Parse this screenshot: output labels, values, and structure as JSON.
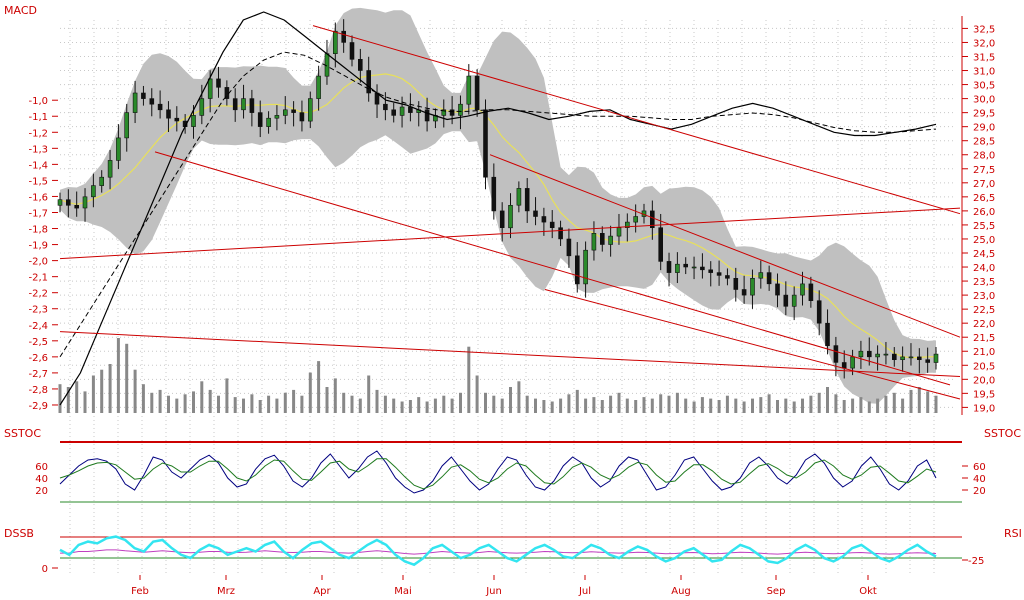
{
  "panels": {
    "main": {
      "left_label": "MACD"
    },
    "stoch": {
      "left_label": "SSTOC",
      "right_label": "SSTOC"
    },
    "dssb": {
      "left_label": "DSSB",
      "right_label": "RSI"
    }
  },
  "colors": {
    "axis_text": "#cc0000",
    "candle_up": "#2a8a2a",
    "candle_down": "#111111",
    "bollinger_band": "#c0c0c0",
    "moving_average": "#e8e05a",
    "trendline": "#cc0000",
    "volume": "#888888",
    "stoch_fast": "#000080",
    "stoch_slow": "#1f7a1f",
    "dssb_line": "#33e5f0",
    "rsi_line": "#c040c0"
  },
  "chart_data": [
    {
      "type": "candlestick",
      "title": "",
      "x_tick_labels": [
        "Feb",
        "Mrz",
        "Apr",
        "Mai",
        "Jun",
        "Jul",
        "Aug",
        "Sep",
        "Okt"
      ],
      "price_axis_ticks": [
        "32,5",
        "32,0",
        "31,5",
        "31,0",
        "30,5",
        "30,0",
        "29,5",
        "29,0",
        "28,5",
        "28,0",
        "27,5",
        "27,0",
        "26,5",
        "26,0",
        "25,5",
        "25,0",
        "24,5",
        "24,0",
        "23,5",
        "23,0",
        "22,5",
        "22,0",
        "21,5",
        "21,0",
        "20,5",
        "20,0",
        "19,5",
        "19,0"
      ],
      "price_ylim": [
        18.8,
        32.8
      ],
      "macd_axis_ticks": [
        "-1,0",
        "-1,1",
        "-1,2",
        "-1,3",
        "-1,4",
        "-1,5",
        "-1,6",
        "-1,7",
        "-1,8",
        "-1,9",
        "-2,0",
        "-2,1",
        "-2,2",
        "-2,3",
        "-2,4",
        "-2,5",
        "-2,6",
        "-2,7",
        "-2,8",
        "-2,9"
      ],
      "macd_ylim": [
        -2.95,
        -0.5
      ],
      "close_series": [
        26.4,
        26.2,
        26.1,
        26.5,
        26.9,
        27.2,
        27.8,
        28.6,
        29.5,
        30.2,
        30.0,
        29.8,
        29.6,
        29.3,
        29.2,
        29.0,
        29.4,
        30.0,
        30.7,
        30.4,
        30.0,
        29.6,
        30.0,
        29.5,
        29.0,
        29.3,
        29.4,
        29.6,
        29.5,
        29.2,
        30.0,
        30.8,
        31.6,
        32.4,
        32.0,
        31.4,
        31.0,
        30.2,
        29.8,
        29.6,
        29.4,
        29.7,
        29.5,
        29.6,
        29.2,
        29.4,
        29.6,
        29.4,
        29.8,
        30.8,
        29.6,
        27.2,
        26.0,
        25.4,
        26.2,
        26.8,
        26.0,
        25.8,
        25.6,
        25.4,
        25.0,
        24.4,
        23.4,
        24.6,
        25.2,
        24.8,
        25.1,
        25.4,
        25.6,
        25.8,
        26.0,
        25.4,
        24.2,
        23.8,
        24.1,
        24.0,
        24.0,
        23.9,
        23.8,
        23.7,
        23.6,
        23.2,
        23.0,
        23.6,
        23.8,
        23.4,
        23.0,
        22.6,
        23.0,
        23.4,
        22.8,
        22.0,
        21.2,
        20.6,
        20.4,
        20.8,
        21.0,
        20.8,
        20.9,
        20.9,
        20.7,
        20.8,
        20.8,
        20.7,
        20.6,
        20.9
      ],
      "volume_series": [
        2,
        1.8,
        2.2,
        1.5,
        2.6,
        3.0,
        3.4,
        5.2,
        4.8,
        3.0,
        2.0,
        1.4,
        1.6,
        1.2,
        1.0,
        1.3,
        1.5,
        2.2,
        1.6,
        1.2,
        2.4,
        1.1,
        1.0,
        1.3,
        0.9,
        1.2,
        1.0,
        1.4,
        1.6,
        1.2,
        2.8,
        3.6,
        1.8,
        2.4,
        1.4,
        1.2,
        1.0,
        2.6,
        1.6,
        1.2,
        1.0,
        0.8,
        0.9,
        1.1,
        0.8,
        1.0,
        1.2,
        1.0,
        1.4,
        4.6,
        2.6,
        1.4,
        1.2,
        1.0,
        1.8,
        2.2,
        1.2,
        1.0,
        0.9,
        0.8,
        1.0,
        1.3,
        1.6,
        1.0,
        1.1,
        0.9,
        1.2,
        1.4,
        1.0,
        0.9,
        1.1,
        1.0,
        1.3,
        1.2,
        1.4,
        1.0,
        0.8,
        1.1,
        1.0,
        0.9,
        1.2,
        1.0,
        0.8,
        1.0,
        1.1,
        1.3,
        0.9,
        1.0,
        0.8,
        1.0,
        1.2,
        1.4,
        1.8,
        1.3,
        0.9,
        1.0,
        1.1,
        0.8,
        1.0,
        1.2,
        1.4,
        1.0,
        1.6,
        1.8,
        1.5,
        1.2
      ],
      "macd_series": [
        -2.9,
        -2.7,
        -2.4,
        -2.1,
        -1.8,
        -1.5,
        -1.2,
        -0.95,
        -0.7,
        -0.5,
        -0.45,
        -0.5,
        -0.6,
        -0.7,
        -0.8,
        -0.9,
        -1.0,
        -1.03,
        -1.08,
        -1.12,
        -1.1,
        -1.07,
        -1.05,
        -1.08,
        -1.12,
        -1.1,
        -1.07,
        -1.06,
        -1.12,
        -1.15,
        -1.18,
        -1.15,
        -1.1,
        -1.05,
        -1.02,
        -1.05,
        -1.1,
        -1.15,
        -1.2,
        -1.22,
        -1.22,
        -1.2,
        -1.18,
        -1.15
      ],
      "macd_signal_series": [
        -2.6,
        -2.4,
        -2.2,
        -2.0,
        -1.8,
        -1.6,
        -1.4,
        -1.2,
        -1.0,
        -0.85,
        -0.75,
        -0.7,
        -0.72,
        -0.78,
        -0.85,
        -0.92,
        -0.98,
        -1.02,
        -1.05,
        -1.07,
        -1.07,
        -1.06,
        -1.06,
        -1.07,
        -1.08,
        -1.09,
        -1.1,
        -1.1,
        -1.1,
        -1.11,
        -1.12,
        -1.12,
        -1.1,
        -1.09,
        -1.08,
        -1.09,
        -1.11,
        -1.14,
        -1.17,
        -1.19,
        -1.2,
        -1.2,
        -1.19,
        -1.18
      ],
      "stoch_axis_ticks": [
        "60",
        "40",
        "20"
      ],
      "stoch_ylim": [
        0,
        100
      ],
      "stoch_fast_series": [
        30,
        45,
        60,
        70,
        72,
        68,
        55,
        30,
        20,
        45,
        75,
        70,
        50,
        40,
        55,
        70,
        78,
        65,
        40,
        25,
        30,
        55,
        72,
        78,
        60,
        35,
        25,
        40,
        65,
        80,
        60,
        40,
        55,
        75,
        85,
        65,
        40,
        25,
        15,
        20,
        35,
        60,
        75,
        55,
        35,
        20,
        30,
        55,
        75,
        70,
        45,
        25,
        20,
        35,
        60,
        75,
        65,
        40,
        25,
        35,
        60,
        75,
        70,
        45,
        20,
        25,
        45,
        70,
        75,
        55,
        35,
        20,
        25,
        40,
        65,
        75,
        60,
        40,
        30,
        45,
        70,
        80,
        65,
        40,
        25,
        35,
        60,
        75,
        55,
        30,
        20,
        35,
        60,
        70,
        40
      ],
      "stoch_slow_series": [
        40,
        45,
        52,
        60,
        65,
        66,
        62,
        50,
        38,
        40,
        55,
        65,
        60,
        50,
        50,
        60,
        68,
        68,
        55,
        40,
        35,
        45,
        60,
        70,
        68,
        52,
        38,
        36,
        50,
        65,
        68,
        55,
        50,
        60,
        72,
        72,
        58,
        42,
        28,
        22,
        28,
        42,
        58,
        62,
        52,
        38,
        32,
        40,
        55,
        65,
        60,
        45,
        32,
        30,
        42,
        58,
        65,
        58,
        45,
        38,
        45,
        58,
        66,
        62,
        45,
        33,
        35,
        50,
        62,
        62,
        52,
        38,
        30,
        33,
        47,
        60,
        64,
        56,
        45,
        40,
        50,
        65,
        70,
        60,
        45,
        38,
        45,
        58,
        60,
        48,
        35,
        32,
        43,
        55,
        50
      ],
      "dssb_axis_ticks": [
        "0"
      ],
      "rsi_axis_ticks": [
        "-25"
      ],
      "dssb_series": [
        0.55,
        0.4,
        0.7,
        0.8,
        0.75,
        0.9,
        0.95,
        0.85,
        0.6,
        0.5,
        0.8,
        0.85,
        0.6,
        0.4,
        0.3,
        0.55,
        0.7,
        0.6,
        0.4,
        0.5,
        0.6,
        0.5,
        0.7,
        0.8,
        0.5,
        0.3,
        0.55,
        0.75,
        0.8,
        0.6,
        0.4,
        0.3,
        0.5,
        0.7,
        0.85,
        0.7,
        0.4,
        0.2,
        0.1,
        0.3,
        0.6,
        0.7,
        0.5,
        0.3,
        0.4,
        0.6,
        0.7,
        0.5,
        0.3,
        0.2,
        0.4,
        0.6,
        0.7,
        0.55,
        0.35,
        0.3,
        0.5,
        0.7,
        0.6,
        0.4,
        0.3,
        0.5,
        0.65,
        0.55,
        0.35,
        0.2,
        0.3,
        0.5,
        0.6,
        0.4,
        0.2,
        0.25,
        0.5,
        0.7,
        0.6,
        0.4,
        0.2,
        0.15,
        0.3,
        0.55,
        0.7,
        0.55,
        0.3,
        0.2,
        0.35,
        0.6,
        0.7,
        0.5,
        0.3,
        0.2,
        0.35,
        0.55,
        0.7,
        0.5,
        0.35
      ],
      "rsi_series": [
        0.45,
        0.45,
        0.5,
        0.5,
        0.52,
        0.55,
        0.55,
        0.52,
        0.5,
        0.48,
        0.5,
        0.52,
        0.5,
        0.48,
        0.46,
        0.48,
        0.5,
        0.5,
        0.48,
        0.47,
        0.48,
        0.5,
        0.52,
        0.5,
        0.48,
        0.47,
        0.48,
        0.5,
        0.5,
        0.48,
        0.46,
        0.45,
        0.47,
        0.5,
        0.52,
        0.5,
        0.47,
        0.44,
        0.42,
        0.44,
        0.47,
        0.5,
        0.48,
        0.46,
        0.45,
        0.47,
        0.5,
        0.48,
        0.46,
        0.45,
        0.46,
        0.48,
        0.5,
        0.49,
        0.47,
        0.46,
        0.47,
        0.49,
        0.48,
        0.46,
        0.45,
        0.46,
        0.48,
        0.47,
        0.45,
        0.43,
        0.44,
        0.46,
        0.47,
        0.45,
        0.43,
        0.44,
        0.46,
        0.48,
        0.47,
        0.45,
        0.43,
        0.42,
        0.44,
        0.46,
        0.48,
        0.46,
        0.44,
        0.43,
        0.44,
        0.46,
        0.47,
        0.45,
        0.43,
        0.42,
        0.43,
        0.45,
        0.46,
        0.45,
        0.44
      ]
    }
  ]
}
